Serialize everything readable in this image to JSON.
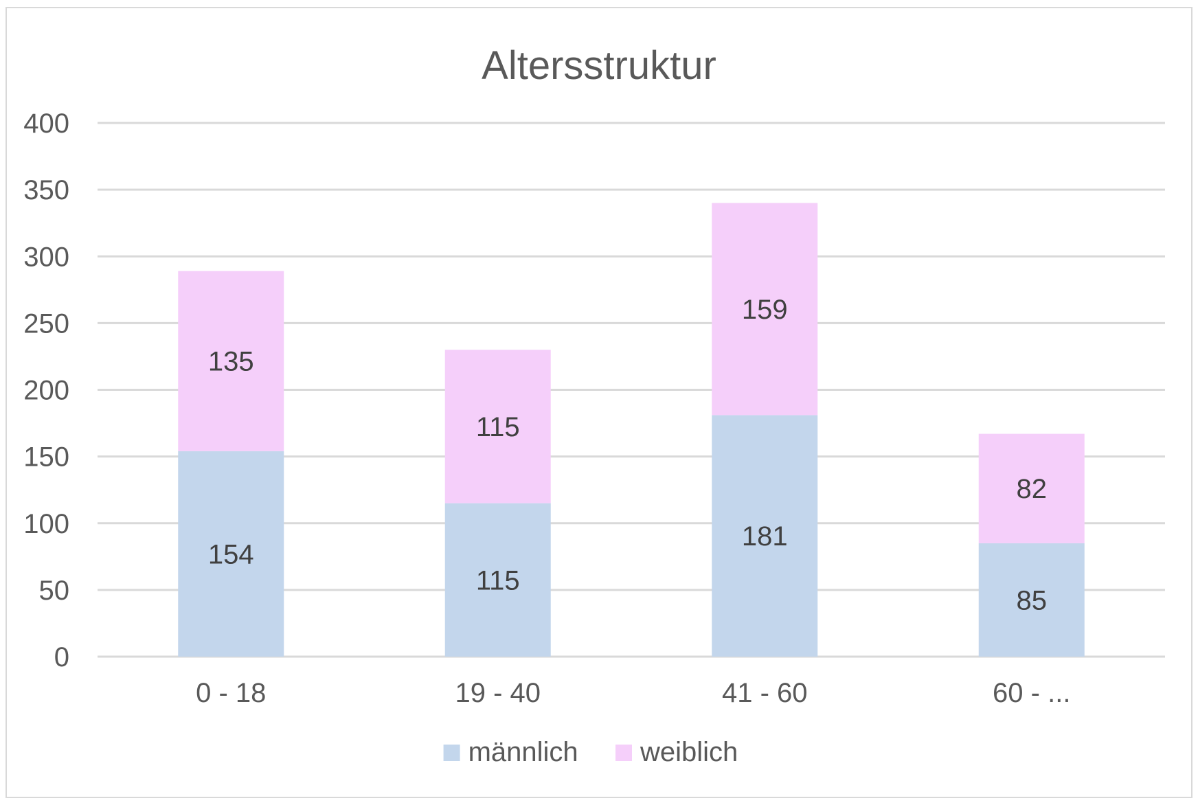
{
  "chart_data": {
    "type": "bar",
    "stacked": true,
    "title": "Altersstruktur",
    "xlabel": "",
    "ylabel": "",
    "categories": [
      "0 - 18",
      "19 - 40",
      "41 - 60",
      "60 - ..."
    ],
    "series": [
      {
        "name": "männlich",
        "values": [
          154,
          115,
          181,
          85
        ],
        "color": "#c3d6ec"
      },
      {
        "name": "weiblich",
        "values": [
          135,
          115,
          159,
          82
        ],
        "color": "#f5cffa"
      }
    ],
    "ylim": [
      0,
      400
    ],
    "yticks": [
      0,
      50,
      100,
      150,
      200,
      250,
      300,
      350,
      400
    ],
    "grid": true,
    "legend": "bottom",
    "data_labels": true
  }
}
